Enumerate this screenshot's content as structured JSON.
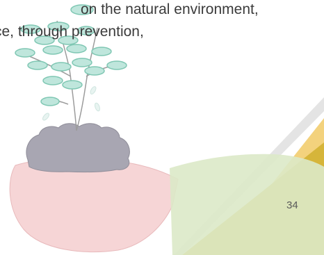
{
  "slide": {
    "text_lines": [
      "on the natural environment,",
      "ce, through prevention,"
    ],
    "page_number": "34"
  },
  "illustration": {
    "subject": "hand-holding-seedling-illustration",
    "colors": {
      "leaf_fill": "#bfe6dc",
      "leaf_stroke": "#7fc7b3",
      "stem": "#9c9c9c",
      "soil": "#a8a6b2",
      "hand_pink": "#f6d5d6",
      "sleeve_green": "#dbe9c8",
      "triangle_yellow": "#d6b53a",
      "triangle_orange": "#f3d27d",
      "triangle_grey": "#d9d9d9"
    }
  }
}
